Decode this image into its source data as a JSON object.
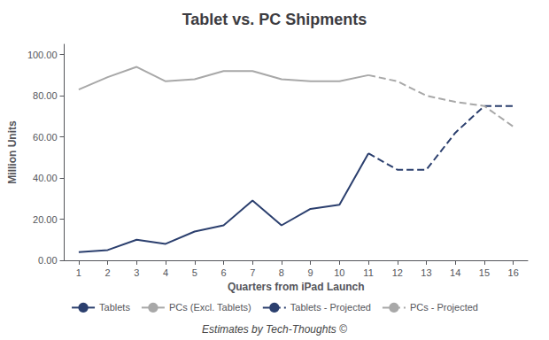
{
  "chart_data": {
    "type": "line",
    "title": "Tablet vs. PC Shipments",
    "xlabel": "Quarters from iPad Launch",
    "ylabel": "Million Units",
    "annotations": [
      "Estimates by Tech-Thoughts ©"
    ],
    "xlim": [
      0.5,
      16.5
    ],
    "xticks": [
      1,
      2,
      3,
      4,
      5,
      6,
      7,
      8,
      9,
      10,
      11,
      12,
      13,
      14,
      15,
      16
    ],
    "ylim": [
      0,
      105
    ],
    "yticks": [
      {
        "value": 0,
        "label": "0.00"
      },
      {
        "value": 20,
        "label": "20.00"
      },
      {
        "value": 40,
        "label": "40.00"
      },
      {
        "value": 60,
        "label": "60.00"
      },
      {
        "value": 80,
        "label": "80.00"
      },
      {
        "value": 100,
        "label": "100.00"
      }
    ],
    "grid": false,
    "legend": "bottom",
    "series": [
      {
        "name": "Tablets",
        "color": "#2b3f6e",
        "line_style": "solid",
        "x": [
          1,
          2,
          3,
          4,
          5,
          6,
          7,
          8,
          9,
          10,
          11
        ],
        "values": [
          4,
          5,
          10,
          8,
          14,
          17,
          29,
          17,
          25,
          27,
          52
        ]
      },
      {
        "name": "PCs (Excl. Tablets)",
        "color": "#a8a8a8",
        "line_style": "solid",
        "x": [
          1,
          2,
          3,
          4,
          5,
          6,
          7,
          8,
          9,
          10,
          11
        ],
        "values": [
          83,
          89,
          94,
          87,
          88,
          92,
          92,
          88,
          87,
          87,
          90
        ]
      },
      {
        "name": "Tablets - Projected",
        "color": "#2b3f6e",
        "line_style": "dashed",
        "x": [
          11,
          12,
          13,
          14,
          15,
          16
        ],
        "values": [
          52,
          44,
          44,
          62,
          75,
          75
        ]
      },
      {
        "name": "PCs - Projected",
        "color": "#a8a8a8",
        "line_style": "dashed",
        "x": [
          11,
          12,
          13,
          14,
          15,
          16
        ],
        "values": [
          90,
          87,
          80,
          77,
          75,
          65
        ]
      }
    ]
  }
}
